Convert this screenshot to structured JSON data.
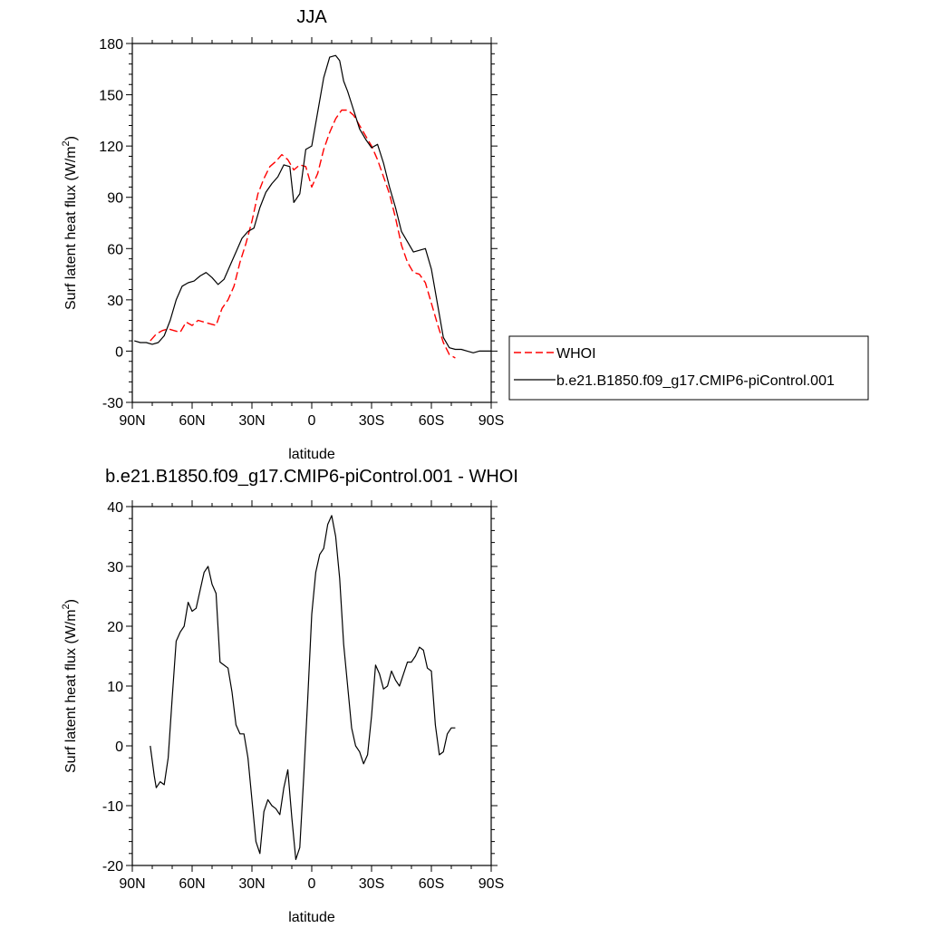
{
  "chart_data": [
    {
      "type": "line",
      "title": "JJA",
      "xlabel": "latitude",
      "ylabel_main": "Surf latent heat flux (W/m",
      "ylabel_sup": "2",
      "ylabel_tail": ")",
      "xlim": [
        -90,
        90
      ],
      "ylim": [
        -30,
        180
      ],
      "xticks": [
        -90,
        -60,
        -30,
        0,
        30,
        60,
        90
      ],
      "xtick_labels": [
        "90N",
        "60N",
        "30N",
        "0",
        "30S",
        "60S",
        "90S"
      ],
      "yticks": [
        -30,
        0,
        30,
        60,
        90,
        120,
        150,
        180
      ],
      "ytick_labels": [
        "-30",
        "0",
        "30",
        "60",
        "90",
        "120",
        "150",
        "180"
      ],
      "grid": false,
      "legend_position": "right",
      "series": [
        {
          "name": "WHOI",
          "color": "#ff0000",
          "dash": true,
          "x": [
            -81,
            -78,
            -75,
            -72,
            -69,
            -66,
            -63,
            -60,
            -57,
            -54,
            -51,
            -48,
            -45,
            -42,
            -39,
            -36,
            -33,
            -30,
            -27,
            -24,
            -21,
            -18,
            -15,
            -12,
            -9,
            -6,
            -3,
            0,
            3,
            6,
            9,
            12,
            15,
            18,
            21,
            24,
            27,
            30,
            33,
            36,
            39,
            42,
            45,
            48,
            51,
            54,
            57,
            60,
            63,
            66,
            69,
            72
          ],
          "y": [
            6,
            10,
            12,
            13,
            12,
            11,
            17,
            15,
            18,
            17,
            16,
            15,
            25,
            30,
            38,
            52,
            63,
            76,
            92,
            101,
            108,
            111,
            115,
            112,
            106,
            109,
            108,
            96,
            104,
            118,
            128,
            136,
            141,
            141,
            138,
            132,
            126,
            120,
            112,
            102,
            92,
            78,
            62,
            52,
            46,
            45,
            40,
            28,
            16,
            5,
            -2,
            -4
          ]
        },
        {
          "name": "b.e21.B1850.f09_g17.CMIP6-piControl.001",
          "color": "#000000",
          "dash": false,
          "x": [
            -89,
            -86,
            -83,
            -80,
            -77,
            -74,
            -71,
            -68,
            -65,
            -62,
            -59,
            -56,
            -53,
            -50,
            -47,
            -44,
            -41,
            -38,
            -35,
            -32,
            -29,
            -26,
            -23,
            -20,
            -17,
            -14,
            -11,
            -9,
            -6,
            -3,
            0,
            3,
            6,
            9,
            12,
            14,
            16,
            18,
            21,
            24,
            27,
            30,
            33,
            36,
            39,
            42,
            45,
            48,
            51,
            54,
            57,
            60,
            63,
            66,
            69,
            72,
            75,
            78,
            81,
            84,
            87,
            90
          ],
          "y": [
            6,
            5,
            5,
            4,
            5,
            9,
            18,
            30,
            38,
            40,
            41,
            44,
            46,
            43,
            39,
            42,
            50,
            58,
            66,
            70,
            72,
            84,
            93,
            98,
            102,
            109,
            108,
            87,
            92,
            118,
            120,
            140,
            160,
            172,
            173,
            170,
            158,
            152,
            141,
            130,
            124,
            119,
            121,
            110,
            96,
            84,
            70,
            64,
            58,
            59,
            60,
            48,
            28,
            8,
            2,
            1,
            1,
            0,
            -1,
            0,
            0,
            0
          ]
        }
      ]
    },
    {
      "type": "line",
      "title": "b.e21.B1850.f09_g17.CMIP6-piControl.001 - WHOI",
      "xlabel": "latitude",
      "ylabel_main": "Surf latent heat flux (W/m",
      "ylabel_sup": "2",
      "ylabel_tail": ")",
      "xlim": [
        -90,
        90
      ],
      "ylim": [
        -20,
        40
      ],
      "xticks": [
        -90,
        -60,
        -30,
        0,
        30,
        60,
        90
      ],
      "xtick_labels": [
        "90N",
        "60N",
        "30N",
        "0",
        "30S",
        "60S",
        "90S"
      ],
      "yticks": [
        -20,
        -10,
        0,
        10,
        20,
        30,
        40
      ],
      "ytick_labels": [
        "-20",
        "-10",
        "0",
        "10",
        "20",
        "30",
        "40"
      ],
      "grid": false,
      "series": [
        {
          "color": "#000000",
          "dash": false,
          "x": [
            -81,
            -79,
            -78,
            -76,
            -74,
            -72,
            -70,
            -68,
            -66,
            -64,
            -62,
            -60,
            -58,
            -56,
            -54,
            -52,
            -50,
            -48,
            -46,
            -44,
            -42,
            -40,
            -38,
            -36,
            -34,
            -32,
            -30,
            -28,
            -26,
            -24,
            -22,
            -20,
            -18,
            -16,
            -14,
            -12,
            -10,
            -8,
            -6,
            -4,
            -2,
            0,
            2,
            4,
            6,
            8,
            10,
            12,
            14,
            16,
            18,
            20,
            22,
            24,
            26,
            28,
            30,
            32,
            34,
            36,
            38,
            40,
            42,
            44,
            46,
            48,
            50,
            52,
            54,
            56,
            58,
            60,
            62,
            64,
            66,
            68,
            70,
            72
          ],
          "y": [
            0,
            -5,
            -7,
            -6,
            -6.5,
            -2,
            8,
            17.5,
            19,
            20,
            24,
            22.5,
            23,
            26,
            29,
            30,
            27,
            25.5,
            14,
            13.5,
            13,
            9,
            3.5,
            2,
            2,
            -2,
            -9,
            -16,
            -18,
            -11,
            -9,
            -10,
            -10.5,
            -11.5,
            -7,
            -4,
            -12,
            -19,
            -17,
            -5,
            8,
            22,
            29,
            32,
            33,
            37,
            38.5,
            35,
            28,
            17,
            10,
            3,
            0,
            -1,
            -3,
            -1.5,
            5,
            13.5,
            12,
            9.5,
            10,
            12.5,
            11,
            10,
            12,
            14,
            14,
            15,
            16.5,
            16,
            13,
            12.5,
            3.5,
            -1.5,
            -1,
            2,
            3,
            3
          ]
        }
      ]
    }
  ]
}
